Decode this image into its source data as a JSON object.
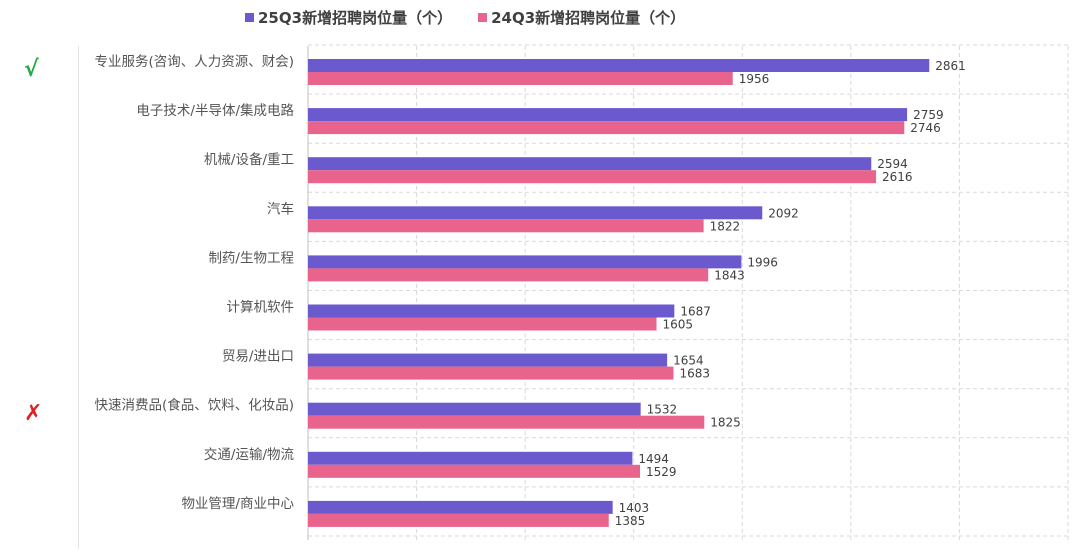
{
  "chart_data": {
    "type": "bar",
    "orientation": "horizontal",
    "categories": [
      "专业服务(咨询、人力资源、财会)",
      "电子技术/半导体/集成电路",
      "机械/设备/重工",
      "汽车",
      "制药/生物工程",
      "计算机软件",
      "贸易/进出口",
      "快速消费品(食品、饮料、化妆品)",
      "交通/运输/物流",
      "物业管理/商业中心"
    ],
    "series": [
      {
        "name": "25Q3新增招聘岗位量（个）",
        "color": "#6a5acd",
        "values": [
          2861,
          2759,
          2594,
          2092,
          1996,
          1687,
          1654,
          1532,
          1494,
          1403
        ]
      },
      {
        "name": "24Q3新增招聘岗位量（个）",
        "color": "#e8648c",
        "values": [
          1956,
          2746,
          2616,
          1822,
          1843,
          1605,
          1683,
          1825,
          1529,
          1385
        ]
      }
    ],
    "xlim": [
      0,
      3500
    ],
    "grid": true,
    "legend_position": "top",
    "data_labels": true,
    "markers": [
      {
        "symbol": "√",
        "category": "专业服务(咨询、人力资源、财会)",
        "color": "#22aa44"
      },
      {
        "symbol": "✗",
        "category": "快速消费品(食品、饮料、化妆品)",
        "color": "#e02020"
      }
    ]
  }
}
